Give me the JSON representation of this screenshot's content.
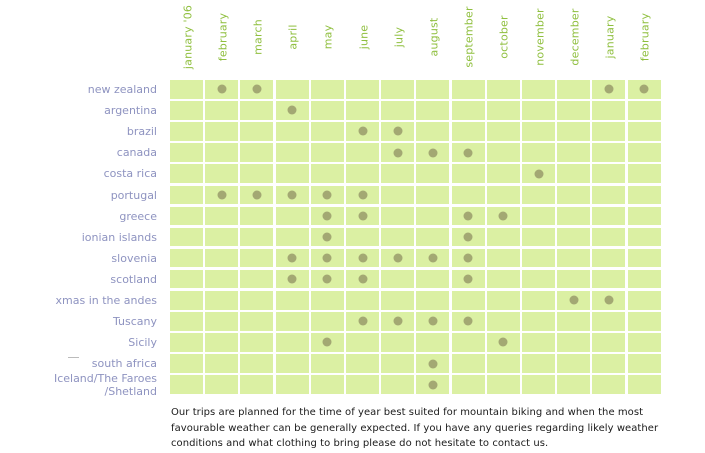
{
  "months": [
    "january '06",
    "february",
    "march",
    "april",
    "may",
    "june",
    "july",
    "august",
    "september",
    "october",
    "november",
    "december",
    "january",
    "february"
  ],
  "destinations": [
    {
      "name": "new zealand",
      "months": [
        1,
        2,
        12,
        13
      ]
    },
    {
      "name": "argentina",
      "months": [
        3
      ]
    },
    {
      "name": "brazil",
      "months": [
        5,
        6
      ]
    },
    {
      "name": "canada",
      "months": [
        6,
        7,
        8
      ]
    },
    {
      "name": "costa rica",
      "months": [
        10
      ]
    },
    {
      "name": "portugal",
      "months": [
        1,
        2,
        3,
        4,
        5
      ]
    },
    {
      "name": "greece",
      "months": [
        4,
        5,
        8,
        9
      ]
    },
    {
      "name": "ionian islands",
      "months": [
        4,
        8
      ]
    },
    {
      "name": "slovenia",
      "months": [
        3,
        4,
        5,
        6,
        7,
        8
      ]
    },
    {
      "name": "scotland",
      "months": [
        3,
        4,
        5,
        8
      ]
    },
    {
      "name": "xmas in the andes",
      "months": [
        11,
        12
      ]
    },
    {
      "name": "Tuscany",
      "months": [
        5,
        6,
        7,
        8
      ]
    },
    {
      "name": "Sicily",
      "months": [
        4,
        9
      ]
    },
    {
      "name": "south africa",
      "months": [
        7
      ]
    },
    {
      "name": "Iceland/The Faroes /Shetland",
      "months": [
        7
      ]
    }
  ],
  "footer_text": "Our trips are planned for the time of year best suited for mountain biking and when the most favourable weather can be generally expected. If you have any queries regarding likely weather conditions and what clothing to bring please do not hesitate to contact us.",
  "colors": {
    "cell": "#dbf0a3",
    "dot": "#a3a873",
    "month_text": "#8fbf3e",
    "label_text": "#8e93c0"
  }
}
